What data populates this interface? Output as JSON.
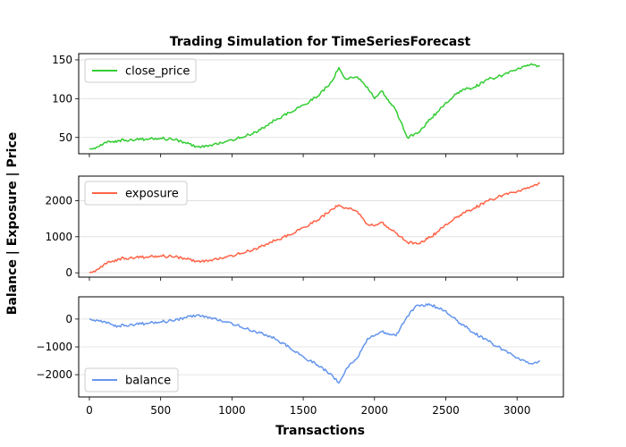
{
  "chart_data": {
    "type": "line",
    "title": "Trading Simulation for TimeSeriesForecast",
    "xlabel": "Transactions",
    "ylabel": "Balance | Exposure | Price",
    "xlim": [
      -75,
      3325
    ],
    "xticks": [
      0,
      500,
      1000,
      1500,
      2000,
      2500,
      3000
    ],
    "grid": "horizontal",
    "panels": [
      {
        "name": "close_price",
        "color": "#32CD32",
        "ylim": [
          29,
          158
        ],
        "yticks": [
          50,
          100,
          150
        ],
        "legend": "top-left",
        "x": [
          0,
          60,
          120,
          200,
          300,
          400,
          500,
          600,
          700,
          760,
          850,
          1000,
          1100,
          1200,
          1300,
          1400,
          1500,
          1600,
          1700,
          1750,
          1800,
          1880,
          1950,
          2000,
          2050,
          2150,
          2230,
          2300,
          2400,
          2500,
          2600,
          2700,
          2800,
          2900,
          3000,
          3100,
          3160
        ],
        "values": [
          35,
          38,
          43,
          46,
          47,
          48,
          49,
          47,
          42,
          38,
          40,
          47,
          52,
          60,
          72,
          82,
          92,
          103,
          122,
          140,
          125,
          128,
          115,
          100,
          110,
          85,
          50,
          55,
          75,
          95,
          110,
          115,
          125,
          130,
          138,
          145,
          142
        ]
      },
      {
        "name": "exposure",
        "color": "#FF6347",
        "ylim": [
          -120,
          2680
        ],
        "yticks": [
          0,
          1000,
          2000
        ],
        "legend": "top-left",
        "x": [
          0,
          60,
          120,
          200,
          300,
          400,
          500,
          600,
          700,
          760,
          850,
          1000,
          1100,
          1200,
          1300,
          1400,
          1500,
          1600,
          1700,
          1750,
          1800,
          1880,
          1950,
          2000,
          2050,
          2150,
          2230,
          2300,
          2400,
          2500,
          2600,
          2700,
          2800,
          2900,
          3000,
          3100,
          3160
        ],
        "values": [
          0,
          100,
          250,
          380,
          420,
          440,
          470,
          440,
          380,
          320,
          350,
          480,
          580,
          720,
          890,
          1050,
          1260,
          1460,
          1760,
          1880,
          1800,
          1700,
          1350,
          1300,
          1400,
          1100,
          850,
          800,
          1000,
          1350,
          1600,
          1800,
          2000,
          2150,
          2250,
          2400,
          2500
        ]
      },
      {
        "name": "balance",
        "color": "#6495ED",
        "ylim": [
          -2800,
          800
        ],
        "yticks": [
          -2000,
          -1000,
          0
        ],
        "legend": "bottom-left",
        "x": [
          0,
          60,
          120,
          200,
          300,
          400,
          500,
          600,
          700,
          760,
          850,
          1000,
          1100,
          1200,
          1300,
          1400,
          1500,
          1600,
          1700,
          1750,
          1800,
          1880,
          1950,
          2000,
          2050,
          2150,
          2230,
          2300,
          2400,
          2500,
          2600,
          2700,
          2800,
          2900,
          3000,
          3100,
          3160
        ],
        "values": [
          0,
          -50,
          -150,
          -250,
          -200,
          -150,
          -100,
          -50,
          100,
          150,
          50,
          -150,
          -350,
          -500,
          -700,
          -1000,
          -1350,
          -1650,
          -2000,
          -2300,
          -1800,
          -1400,
          -700,
          -600,
          -450,
          -600,
          100,
          500,
          500,
          300,
          -150,
          -500,
          -800,
          -1100,
          -1400,
          -1600,
          -1500
        ]
      }
    ]
  }
}
